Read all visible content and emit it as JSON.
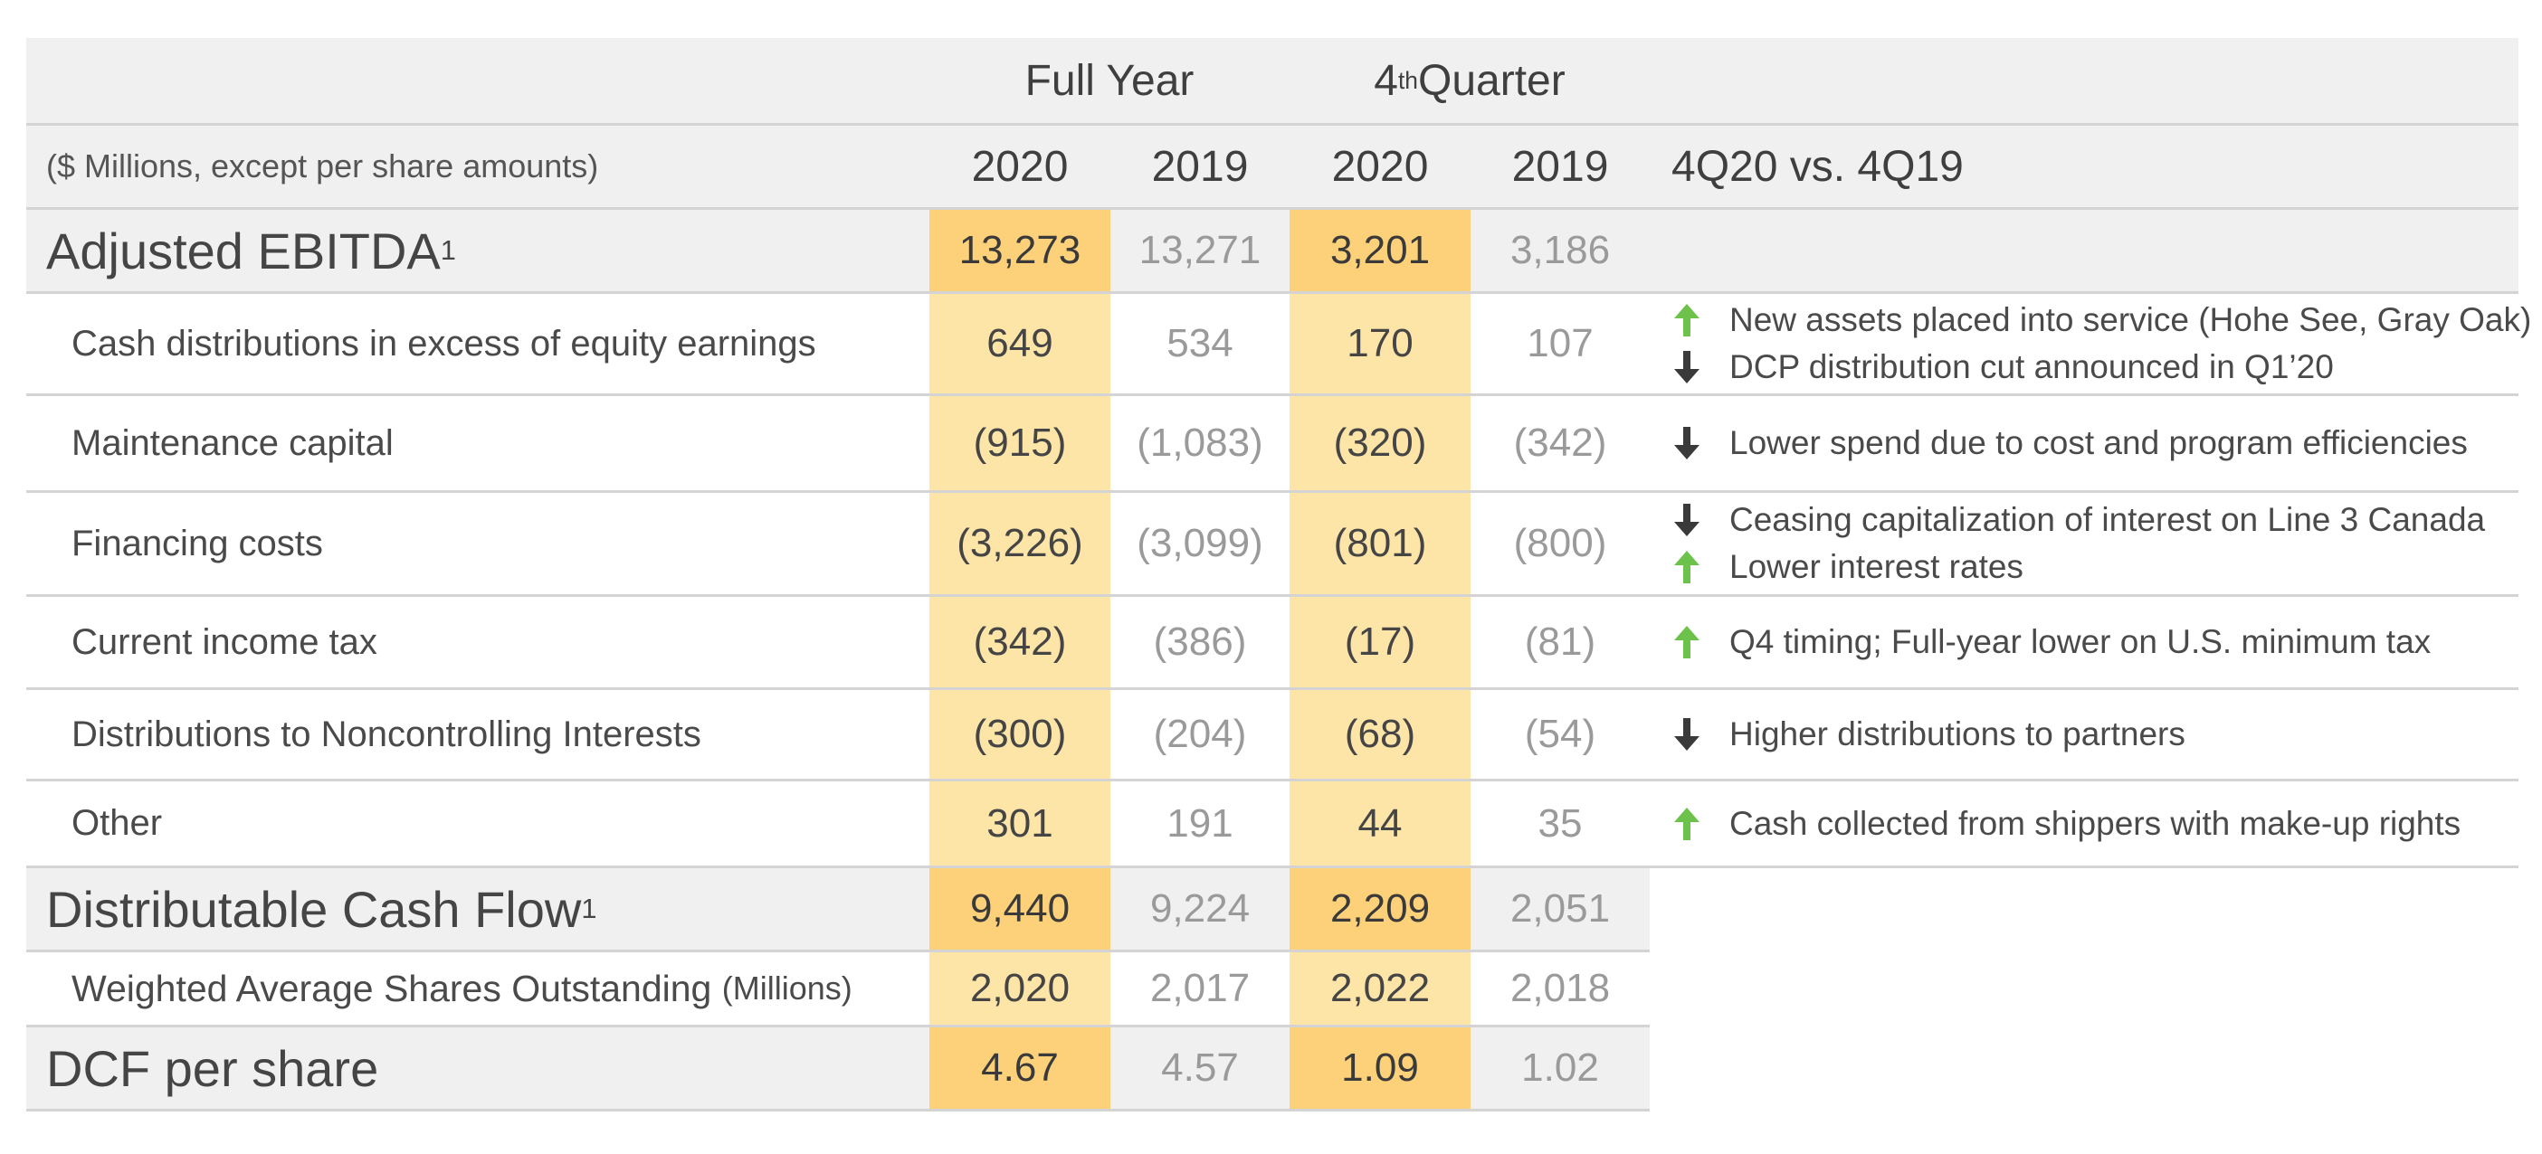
{
  "header": {
    "group_full_year": "Full Year",
    "group_quarter_base": "4",
    "group_quarter_sup": "th",
    "group_quarter_rest": " Quarter",
    "units_label": "($ Millions, except per share amounts)",
    "col_fy2020": "2020",
    "col_fy2019": "2019",
    "col_q2020": "2020",
    "col_q2019": "2019",
    "col_comment": "4Q20 vs. 4Q19"
  },
  "ebitda": {
    "label": "Adjusted EBITDA",
    "footnote": "1",
    "fy2020": "13,273",
    "fy2019": "13,271",
    "q2020": "3,201",
    "q2019": "3,186"
  },
  "items": [
    {
      "label": "Cash distributions in excess of equity earnings",
      "fy2020": "649",
      "fy2019": "534",
      "q2020": "170",
      "q2019": "107",
      "comments": [
        {
          "direction": "up",
          "text": "New assets placed into service (Hohe See, Gray Oak)"
        },
        {
          "direction": "down",
          "text": "DCP distribution cut announced in Q1’20"
        }
      ]
    },
    {
      "label": "Maintenance capital",
      "fy2020": "(915)",
      "fy2019": "(1,083)",
      "q2020": "(320)",
      "q2019": "(342)",
      "comments": [
        {
          "direction": "down",
          "text": "Lower spend due to cost and program efficiencies"
        }
      ]
    },
    {
      "label": "Financing costs",
      "fy2020": "(3,226)",
      "fy2019": "(3,099)",
      "q2020": "(801)",
      "q2019": "(800)",
      "comments": [
        {
          "direction": "down",
          "text": "Ceasing capitalization of interest on Line 3 Canada"
        },
        {
          "direction": "up",
          "text": "Lower interest rates"
        }
      ]
    },
    {
      "label": "Current income tax",
      "fy2020": "(342)",
      "fy2019": "(386)",
      "q2020": "(17)",
      "q2019": "(81)",
      "comments": [
        {
          "direction": "up",
          "text": "Q4 timing; Full-year lower on U.S. minimum tax"
        }
      ]
    },
    {
      "label": "Distributions to Noncontrolling Interests",
      "fy2020": "(300)",
      "fy2019": "(204)",
      "q2020": "(68)",
      "q2019": "(54)",
      "comments": [
        {
          "direction": "down",
          "text": "Higher distributions to partners"
        }
      ]
    },
    {
      "label": "Other",
      "fy2020": "301",
      "fy2019": "191",
      "q2020": "44",
      "q2019": "35",
      "comments": [
        {
          "direction": "up",
          "text": "Cash collected from shippers with make-up rights"
        }
      ]
    }
  ],
  "dcf": {
    "label": "Distributable Cash Flow",
    "footnote": "1",
    "fy2020": "9,440",
    "fy2019": "9,224",
    "q2020": "2,209",
    "q2019": "2,051"
  },
  "shares": {
    "label": "Weighted Average Shares Outstanding",
    "unit": "(Millions)",
    "fy2020": "2,020",
    "fy2019": "2,017",
    "q2020": "2,022",
    "q2019": "2,018"
  },
  "dcf_per_share": {
    "label": "DCF per share",
    "fy2020": "4.67",
    "fy2019": "4.57",
    "q2020": "1.09",
    "q2019": "1.02"
  },
  "colors": {
    "up_arrow": "#6cc24a",
    "down_arrow": "#3a3a3a",
    "highlight": "#fde5a8",
    "highlight_strong": "#fdd17a",
    "header_gray": "#f0f0f0"
  }
}
